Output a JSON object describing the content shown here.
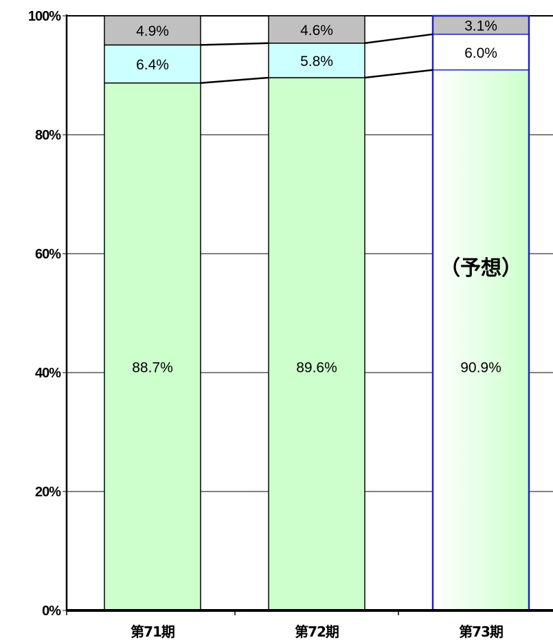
{
  "chart_data": {
    "type": "bar",
    "stacked": true,
    "percent": true,
    "title": "",
    "xlabel": "",
    "ylabel": "",
    "ylim": [
      0,
      100
    ],
    "yticks": [
      "0%",
      "20%",
      "40%",
      "60%",
      "80%",
      "100%"
    ],
    "yticks_values": [
      0,
      20,
      40,
      60,
      80,
      100
    ],
    "grid": true,
    "legend": "none",
    "categories": [
      "第71期",
      "第72期",
      "第73期"
    ],
    "series": [
      {
        "labels": [
          "88.7%",
          "89.6%",
          "90.9%"
        ],
        "values": [
          88.7,
          89.6,
          90.9
        ],
        "color": "#ccffcc"
      },
      {
        "labels": [
          "6.4%",
          "5.8%",
          "6.0%"
        ],
        "values": [
          6.4,
          5.8,
          6.0
        ],
        "color": "#ccffff"
      },
      {
        "labels": [
          "4.9%",
          "4.6%",
          "3.1%"
        ],
        "values": [
          4.9,
          4.6,
          3.1
        ],
        "color": "#c0c0c0"
      }
    ],
    "forecast_category_index": 2,
    "forecast_border_color": "#1f1fcc",
    "annotation": "（予想）"
  }
}
